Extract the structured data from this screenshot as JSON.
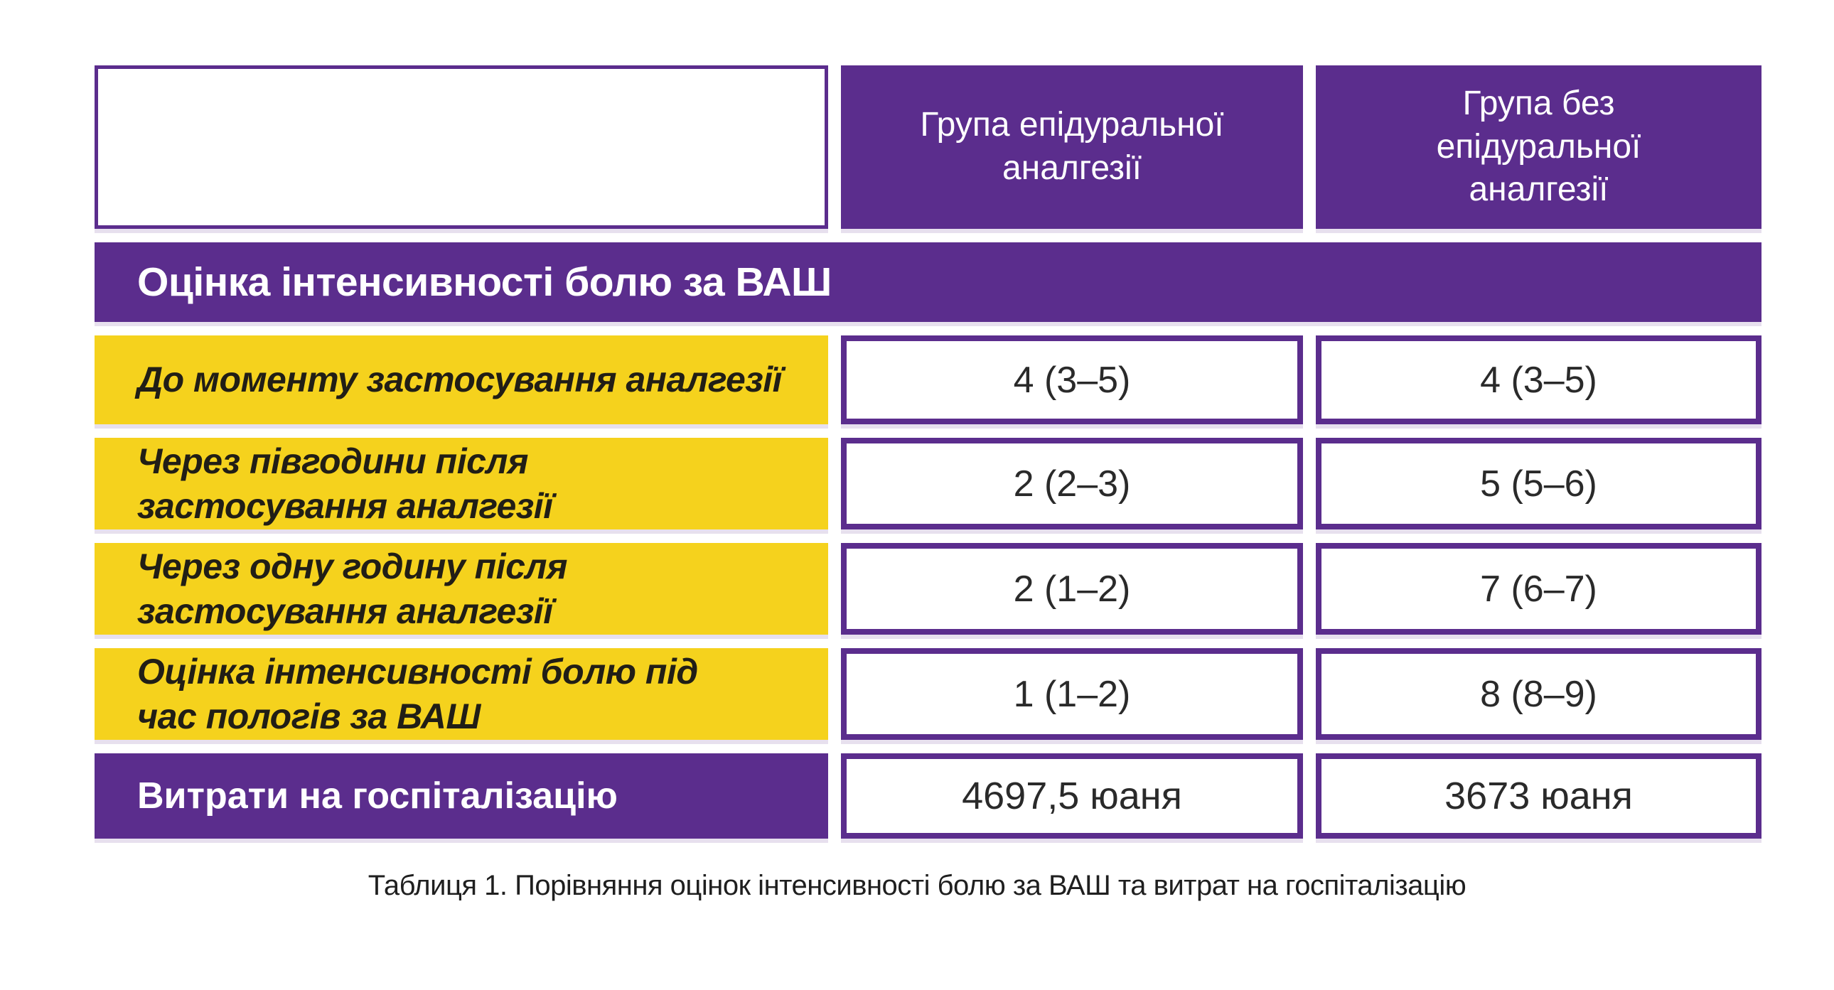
{
  "colors": {
    "purple": "#5b2d8d",
    "yellow": "#f5d21d",
    "cell_border": "#5b2d8d",
    "header_text": "#ffffff",
    "label_text": "#211e16",
    "value_text": "#2a2a2a"
  },
  "table": {
    "header": {
      "col2": "Група епідуральної\nаналгезії",
      "col3": "Група без\nепідуральної\nаналгезії"
    },
    "section_title": "Оцінка інтенсивності болю за ВАШ",
    "rows": [
      {
        "label": "До моменту застосування аналгезії",
        "epidural": "4 (3–5)",
        "no_epidural": "4 (3–5)"
      },
      {
        "label": "Через півгодини після\nзастосування аналгезії",
        "epidural": "2 (2–3)",
        "no_epidural": "5 (5–6)"
      },
      {
        "label": "Через одну годину після\nзастосування аналгезії",
        "epidural": "2 (1–2)",
        "no_epidural": "7 (6–7)"
      },
      {
        "label": "Оцінка інтенсивності болю під\nчас пологів за ВАШ",
        "epidural": "1 (1–2)",
        "no_epidural": "8 (8–9)"
      }
    ],
    "footer": {
      "label": "Витрати на госпіталізацію",
      "epidural": "4697,5 юаня",
      "no_epidural": "3673 юаня"
    }
  },
  "caption": "Таблиця 1. Порівняння оцінок інтенсивності болю за ВАШ та витрат на госпіталізацію",
  "chart_data": {
    "type": "table",
    "title": "Таблиця 1. Порівняння оцінок інтенсивності болю за ВАШ та витрат на госпіталізацію",
    "columns": [
      "",
      "Група епідуральної аналгезії",
      "Група без епідуральної аналгезії"
    ],
    "section": "Оцінка інтенсивності болю за ВАШ",
    "rows": [
      [
        "До моменту застосування аналгезії",
        "4 (3–5)",
        "4 (3–5)"
      ],
      [
        "Через півгодини після застосування аналгезії",
        "2 (2–3)",
        "5 (5–6)"
      ],
      [
        "Через одну годину після застосування аналгезії",
        "2 (1–2)",
        "7 (6–7)"
      ],
      [
        "Оцінка інтенсивності болю під час пологів за ВАШ",
        "1 (1–2)",
        "8 (8–9)"
      ],
      [
        "Витрати на госпіталізацію",
        "4697,5 юаня",
        "3673 юаня"
      ]
    ]
  }
}
